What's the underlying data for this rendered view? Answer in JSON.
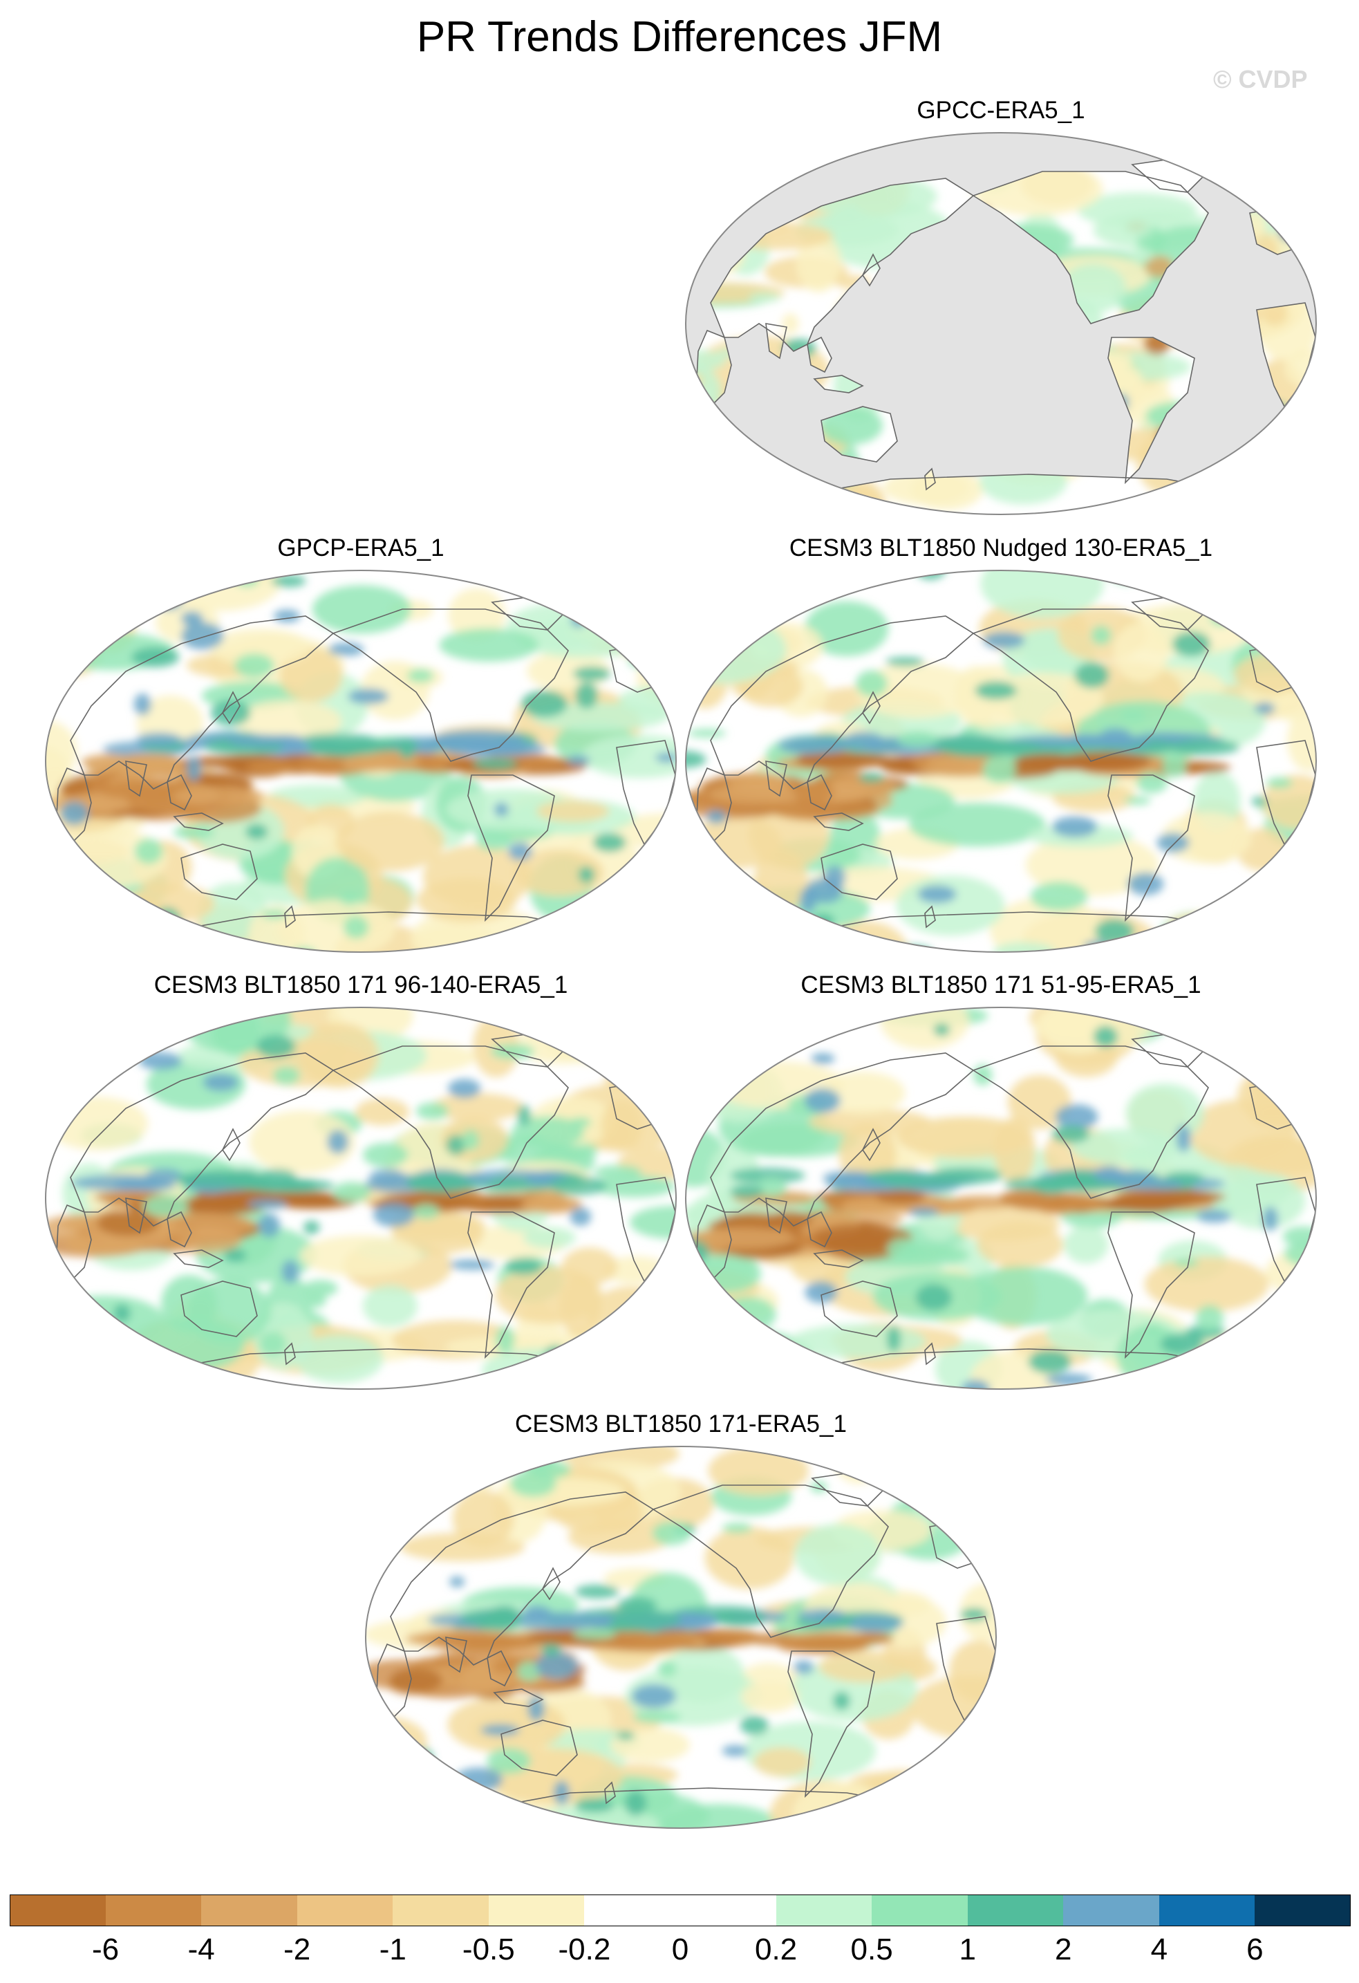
{
  "title": "PR Trends Differences JFM",
  "watermark": "© CVDP",
  "palette": {
    "land": "#ffffff",
    "ocean_missing": "#e3e3e3",
    "coast": "#666666",
    "frame": "#888888"
  },
  "panels": [
    {
      "id": "p1",
      "title": "GPCC-ERA5_1",
      "land_only": true
    },
    {
      "id": "p2",
      "title": "GPCP-ERA5_1",
      "land_only": false
    },
    {
      "id": "p3",
      "title": "CESM3 BLT1850 Nudged 130-ERA5_1",
      "land_only": false
    },
    {
      "id": "p4",
      "title": "CESM3 BLT1850 171 96-140-ERA5_1",
      "land_only": false
    },
    {
      "id": "p5",
      "title": "CESM3 BLT1850 171 51-95-ERA5_1",
      "land_only": false
    },
    {
      "id": "p6",
      "title": "CESM3 BLT1850 171-ERA5_1",
      "land_only": false
    }
  ],
  "colorbar": {
    "labels": [
      "-6",
      "-4",
      "-2",
      "-1",
      "-0.5",
      "-0.2",
      "0",
      "0.2",
      "0.5",
      "1",
      "2",
      "4",
      "6"
    ],
    "colors": [
      "#b8702e",
      "#cc8a45",
      "#dca665",
      "#edc483",
      "#f4dc9f",
      "#fbf2c3",
      "#ffffff",
      "#ffffff",
      "#c4f5d2",
      "#93e6b6",
      "#52bd9c",
      "#6aa6c9",
      "#0f6fae",
      "#053454"
    ]
  }
}
